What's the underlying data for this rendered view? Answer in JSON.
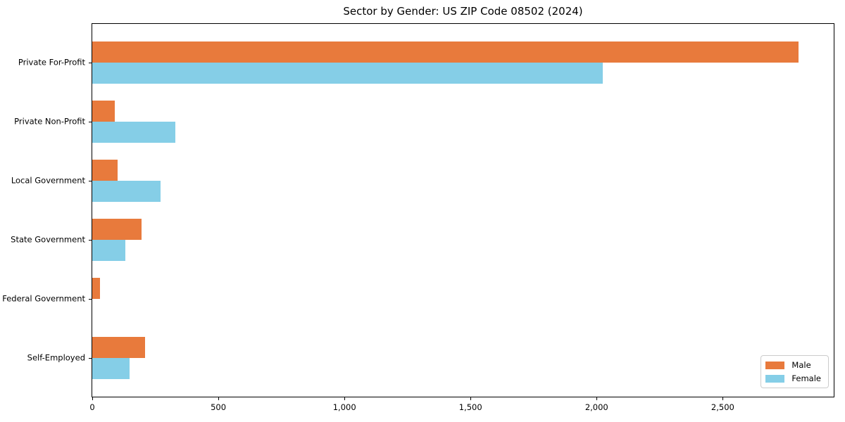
{
  "title": "Sector by Gender: US ZIP Code 08502 (2024)",
  "chart_data": {
    "type": "bar",
    "orientation": "horizontal",
    "title": "Sector by Gender: US ZIP Code 08502 (2024)",
    "categories": [
      "Private For-Profit",
      "Private Non-Profit",
      "Local Government",
      "State Government",
      "Federal Government",
      "Self-Employed"
    ],
    "series": [
      {
        "name": "Male",
        "color": "#e87a3c",
        "values": [
          2800,
          88,
          100,
          195,
          30,
          210
        ]
      },
      {
        "name": "Female",
        "color": "#85cee7",
        "values": [
          2025,
          330,
          270,
          130,
          0,
          148
        ]
      }
    ],
    "xlabel": "",
    "ylabel": "",
    "xlim": [
      0,
      2940
    ],
    "xticks": [
      0,
      500,
      1000,
      1500,
      2000,
      2500
    ],
    "xtick_labels": [
      "0",
      "500",
      "1,000",
      "1,500",
      "2,000",
      "2,500"
    ],
    "grid": false,
    "legend_position": "lower right"
  },
  "legend": {
    "male_label": "Male",
    "female_label": "Female"
  }
}
